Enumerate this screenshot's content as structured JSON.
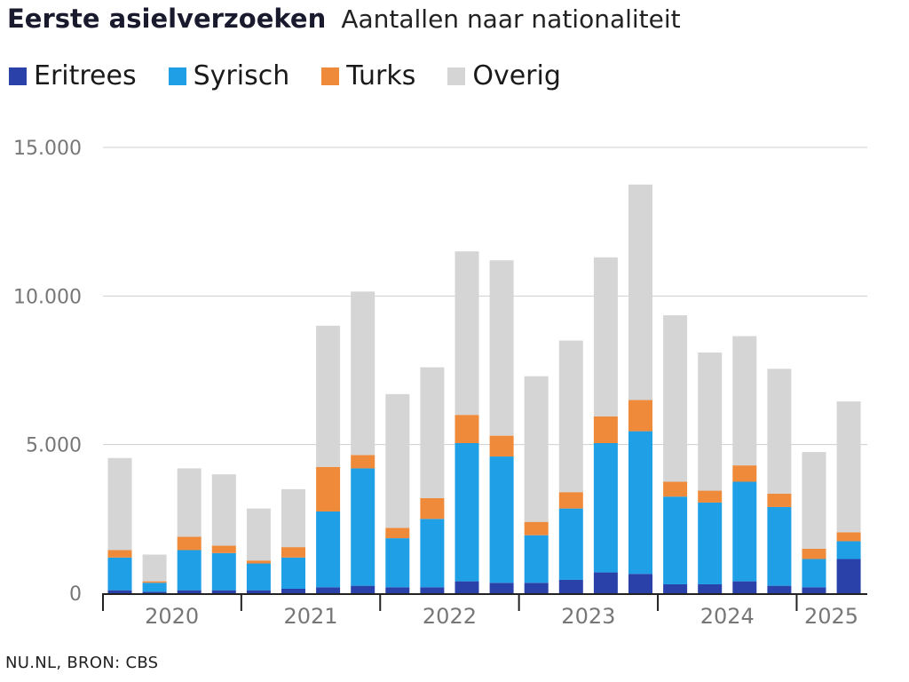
{
  "title": "Eerste asielverzoeken",
  "subtitle": "Aantallen naar nationaliteit",
  "source": "NU.NL, BRON: CBS",
  "chart_data": {
    "type": "bar",
    "stacked": true,
    "title": "Eerste asielverzoeken",
    "subtitle": "Aantallen naar nationaliteit",
    "xlabel": "",
    "ylabel": "",
    "ylim": [
      0,
      15000
    ],
    "yticks": [
      0,
      5000,
      10000,
      15000
    ],
    "ytick_labels": [
      "0",
      "5.000",
      "10.000",
      "15.000"
    ],
    "grid": true,
    "legend_placement": "top-left",
    "categories": [
      "2020-K1",
      "2020-K2",
      "2020-K3",
      "2020-K4",
      "2021-K1",
      "2021-K2",
      "2021-K3",
      "2021-K4",
      "2022-K1",
      "2022-K2",
      "2022-K3",
      "2022-K4",
      "2023-K1",
      "2023-K2",
      "2023-K3",
      "2023-K4",
      "2024-K1",
      "2024-K2",
      "2024-K3",
      "2024-K4",
      "2025-K1",
      "2025-K2"
    ],
    "year_labels": [
      {
        "label": "2020",
        "first_index": 0,
        "count": 4
      },
      {
        "label": "2021",
        "first_index": 4,
        "count": 4
      },
      {
        "label": "2022",
        "first_index": 8,
        "count": 4
      },
      {
        "label": "2023",
        "first_index": 12,
        "count": 4
      },
      {
        "label": "2024",
        "first_index": 16,
        "count": 4
      },
      {
        "label": "2025",
        "first_index": 20,
        "count": 2
      }
    ],
    "series": [
      {
        "name": "Eritrees",
        "color": "#2941a8",
        "values": [
          100,
          50,
          100,
          100,
          100,
          150,
          200,
          250,
          200,
          200,
          400,
          350,
          350,
          450,
          700,
          650,
          300,
          300,
          400,
          250,
          200,
          1150
        ]
      },
      {
        "name": "Syrisch",
        "color": "#1fa0e6",
        "values": [
          1100,
          300,
          1350,
          1250,
          900,
          1050,
          2550,
          3950,
          1650,
          2300,
          4650,
          4250,
          1600,
          2400,
          4350,
          4800,
          2950,
          2750,
          3350,
          2650,
          950,
          600
        ]
      },
      {
        "name": "Turks",
        "color": "#ee8a3a",
        "values": [
          250,
          50,
          450,
          250,
          100,
          350,
          1500,
          450,
          350,
          700,
          950,
          700,
          450,
          550,
          900,
          1050,
          500,
          400,
          550,
          450,
          350,
          300
        ]
      },
      {
        "name": "Overig",
        "color": "#d5d5d5",
        "values": [
          3100,
          900,
          2300,
          2400,
          1750,
          1950,
          4750,
          5500,
          4500,
          4400,
          5500,
          5900,
          4900,
          5100,
          5350,
          7250,
          5600,
          4650,
          4350,
          4200,
          3250,
          4400
        ]
      }
    ]
  }
}
